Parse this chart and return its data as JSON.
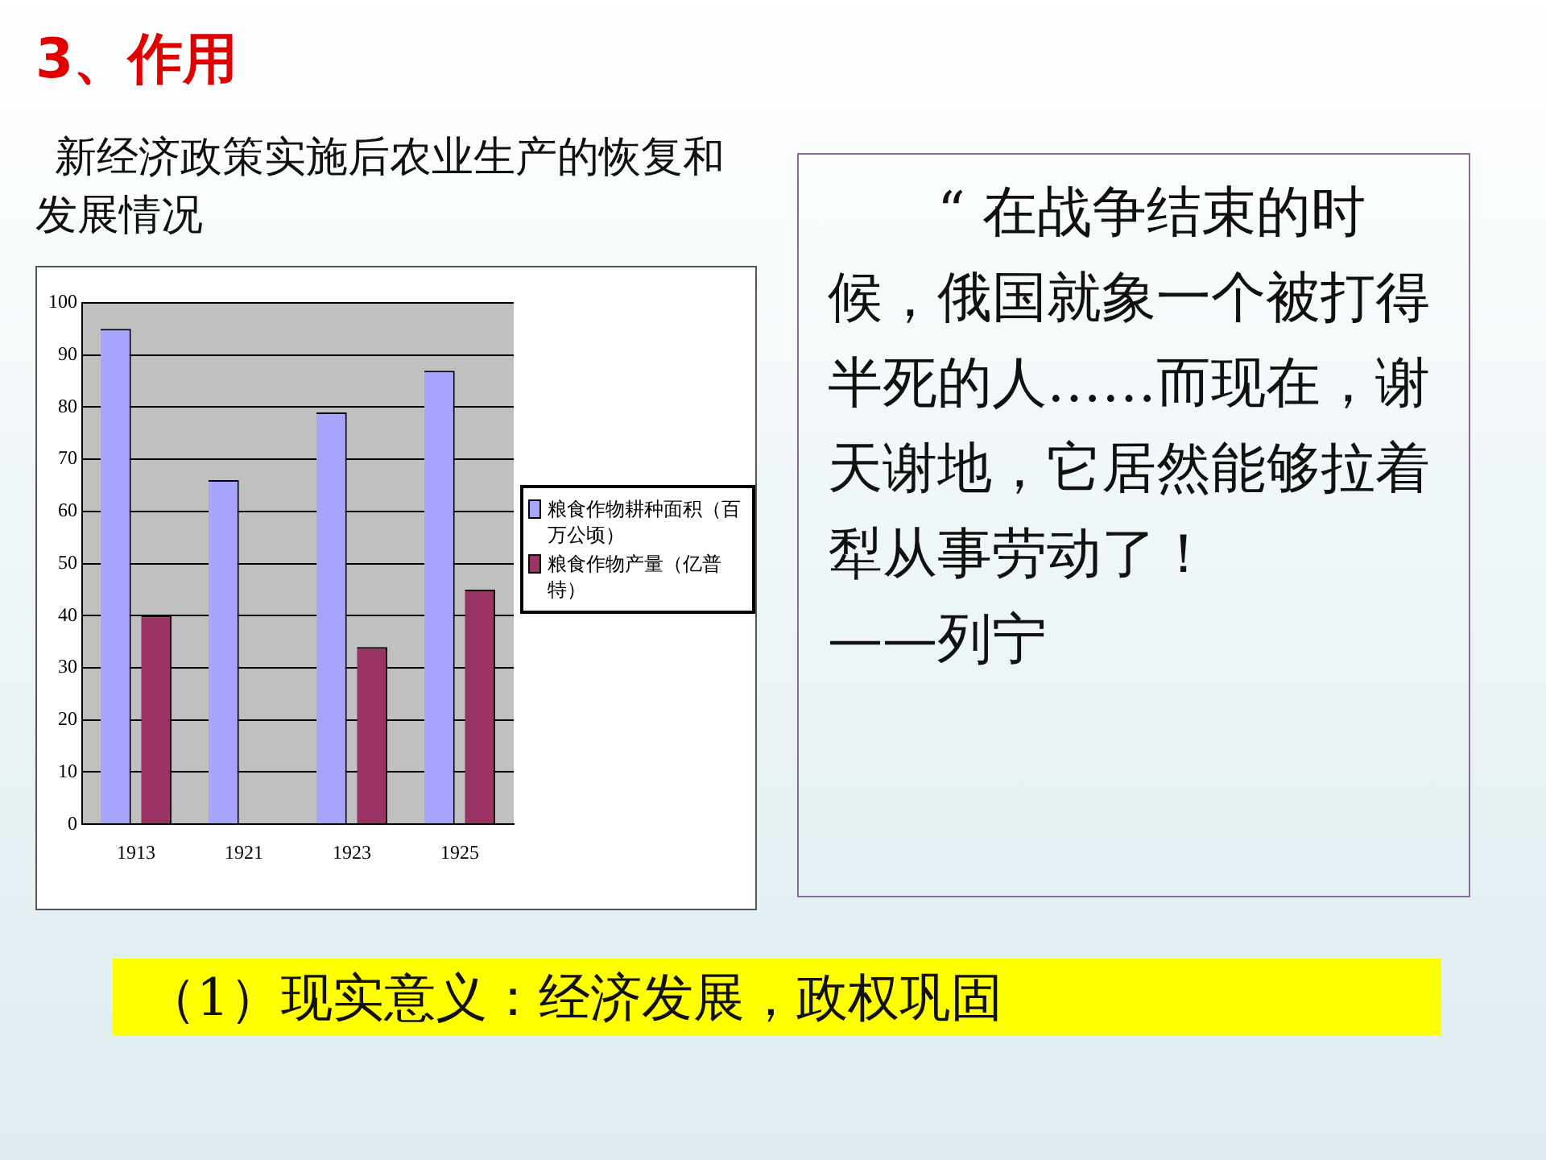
{
  "chart_data": {
    "type": "bar",
    "title": "新经济政策实施后农业生产的恢复和发展情况",
    "categories": [
      "1913",
      "1921",
      "1923",
      "1925"
    ],
    "series": [
      {
        "name": "粮食作物耕种面积（百万公顷）",
        "color": "#a6a6ff",
        "values": [
          95,
          66,
          79,
          87
        ]
      },
      {
        "name": "粮食作物产量（亿普特）",
        "color": "#993366",
        "values": [
          40,
          null,
          34,
          45
        ]
      }
    ],
    "ylim": [
      0,
      100
    ],
    "yticks": [
      0,
      10,
      20,
      30,
      40,
      50,
      60,
      70,
      80,
      90,
      100
    ],
    "grid": "y",
    "legend": "right",
    "annotations": [
      "3、作用",
      "“ 在战争结束的时候，俄国就象一个被打得半死的人……而现在，谢天谢地，它居然能够拉着犁从事劳动了！",
      "——列宁",
      "（1）现实意义：经济发展，政权巩固"
    ]
  }
}
